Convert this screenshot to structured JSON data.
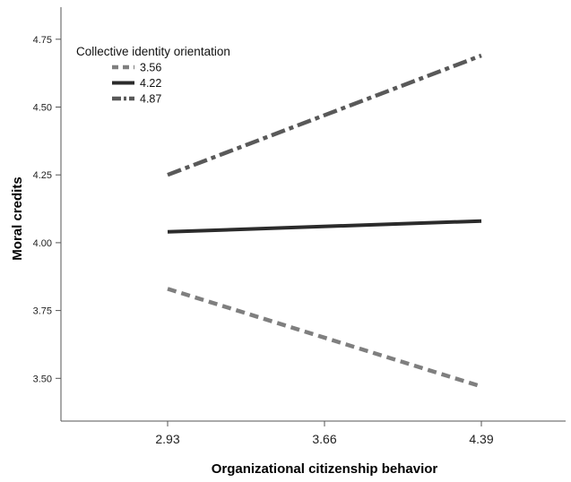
{
  "chart_data": {
    "type": "line",
    "xlabel": "Organizational citizenship behavior",
    "ylabel": "Moral credits",
    "x": [
      2.93,
      4.39
    ],
    "x_ticks": [
      "2.93",
      "3.66",
      "4.39"
    ],
    "y_ticks": [
      "3.50",
      "3.75",
      "4.00",
      "4.25",
      "4.50",
      "4.75"
    ],
    "ylim": [
      3.34,
      4.84
    ],
    "grid": false,
    "legend": {
      "title": "Collective identity orientation",
      "position": "top-left"
    },
    "series": [
      {
        "name": "3.56",
        "values": [
          3.83,
          3.47
        ],
        "color": "#7f7f7f",
        "style": "dashed"
      },
      {
        "name": "4.22",
        "values": [
          4.04,
          4.08
        ],
        "color": "#2b2b2b",
        "style": "solid"
      },
      {
        "name": "4.87",
        "values": [
          4.25,
          4.69
        ],
        "color": "#595959",
        "style": "dash-dot"
      }
    ]
  }
}
